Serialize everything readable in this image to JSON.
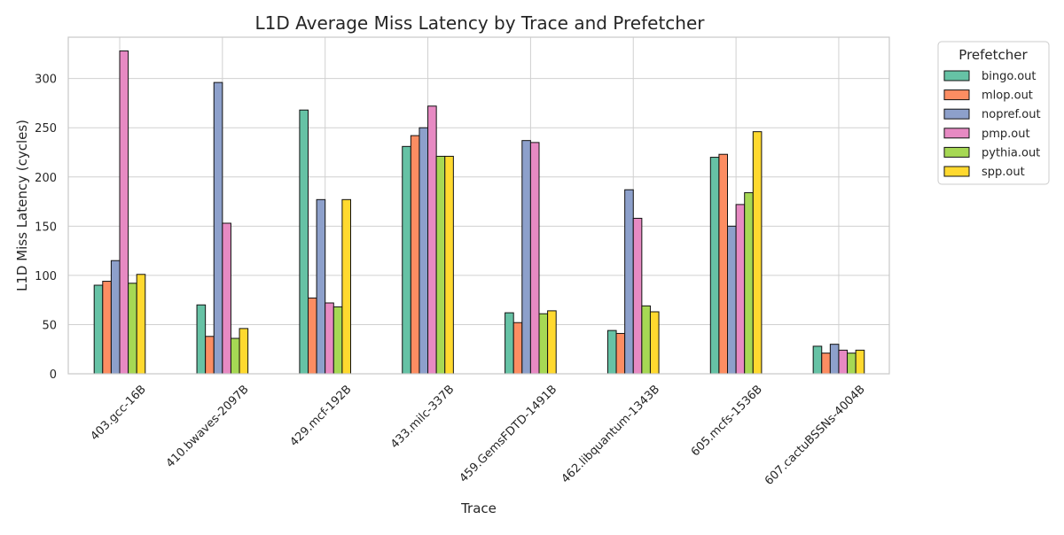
{
  "chart_data": {
    "type": "bar",
    "title": "L1D Average Miss Latency by Trace and Prefetcher",
    "xlabel": "Trace",
    "ylabel": "L1D Miss Latency (cycles)",
    "ylim": [
      0,
      342
    ],
    "yticks": [
      0,
      50,
      100,
      150,
      200,
      250,
      300
    ],
    "grid": true,
    "legend": {
      "title": "Prefetcher",
      "placement": "outside-top-right"
    },
    "categories": [
      "403.gcc-16B",
      "410.bwaves-2097B",
      "429.mcf-192B",
      "433.milc-337B",
      "459.GemsFDTD-1491B",
      "462.libquantum-1343B",
      "605.mcfs-1536B",
      "607.cactuBSSNs-4004B"
    ],
    "series": [
      {
        "name": "bingo.out",
        "color": "#66c2a5",
        "values": [
          90,
          70,
          268,
          231,
          62,
          44,
          220,
          28
        ]
      },
      {
        "name": "mlop.out",
        "color": "#fc8d62",
        "values": [
          94,
          38,
          77,
          242,
          52,
          41,
          223,
          21
        ]
      },
      {
        "name": "nopref.out",
        "color": "#8da0cb",
        "values": [
          115,
          296,
          177,
          250,
          237,
          187,
          150,
          30
        ]
      },
      {
        "name": "pmp.out",
        "color": "#e78ac3",
        "values": [
          328,
          153,
          72,
          272,
          235,
          158,
          172,
          24
        ]
      },
      {
        "name": "pythia.out",
        "color": "#a6d854",
        "values": [
          92,
          36,
          68,
          221,
          61,
          69,
          184,
          21
        ]
      },
      {
        "name": "spp.out",
        "color": "#ffd92f",
        "values": [
          101,
          46,
          177,
          221,
          64,
          63,
          246,
          24
        ]
      }
    ]
  }
}
